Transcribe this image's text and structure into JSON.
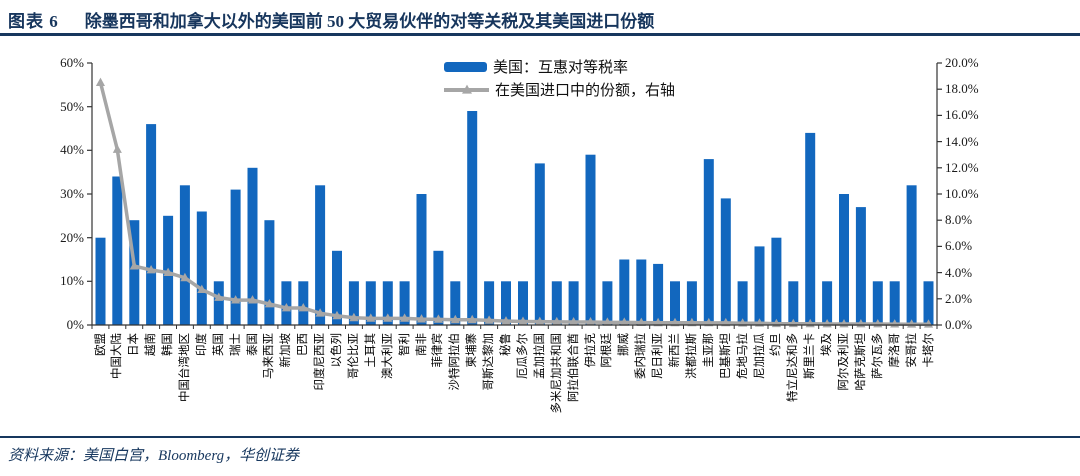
{
  "header": {
    "tag": "图表 6",
    "title": "除墨西哥和加拿大以外的美国前 50 大贸易伙伴的对等关税及其美国进口份额"
  },
  "legend": {
    "bar_label": "美国：互惠对等税率",
    "line_label": "在美国进口中的份额，右轴"
  },
  "footer": {
    "source": "资料来源：美国白宫，Bloomberg，华创证券"
  },
  "colors": {
    "bar": "#1267BE",
    "line": "#A6A6A6",
    "axis": "#333333",
    "navy": "#17365D"
  },
  "chart_data": {
    "type": "bar",
    "subtype": "combo-bar-line-dual-axis",
    "title": "除墨西哥和加拿大以外的美国前50大贸易伙伴的对等关税及其美国进口份额",
    "grid": false,
    "legend_position": "top-center",
    "categories": [
      "欧盟",
      "中国大陆",
      "日本",
      "越南",
      "韩国",
      "中国台湾地区",
      "印度",
      "英国",
      "瑞士",
      "泰国",
      "马来西亚",
      "新加坡",
      "巴西",
      "印度尼西亚",
      "以色列",
      "哥伦比亚",
      "土耳其",
      "澳大利亚",
      "智利",
      "南非",
      "菲律宾",
      "沙特阿拉伯",
      "柬埔寨",
      "哥斯达黎加",
      "秘鲁",
      "厄瓜多尔",
      "孟加拉国",
      "多米尼加共和国",
      "阿拉伯联合酋",
      "伊拉克",
      "阿根廷",
      "挪威",
      "委内瑞拉",
      "尼日利亚",
      "新西兰",
      "洪都拉斯",
      "圭亚那",
      "巴基斯坦",
      "危地马拉",
      "尼加拉瓜",
      "约旦",
      "特立尼达和多",
      "斯里兰卡",
      "埃及",
      "阿尔及利亚",
      "哈萨克斯坦",
      "萨尔瓦多",
      "摩洛哥",
      "安哥拉",
      "卡塔尔"
    ],
    "series": [
      {
        "name": "美国：互惠对等税率",
        "type": "bar",
        "axis": "left",
        "unit": "%",
        "values": [
          20,
          34,
          24,
          46,
          25,
          32,
          26,
          10,
          31,
          36,
          24,
          10,
          10,
          32,
          17,
          10,
          10,
          10,
          10,
          30,
          17,
          10,
          49,
          10,
          10,
          10,
          37,
          10,
          10,
          39,
          10,
          15,
          15,
          14,
          10,
          10,
          38,
          29,
          10,
          18,
          20,
          10,
          44,
          10,
          30,
          27,
          10,
          10,
          32,
          10
        ]
      },
      {
        "name": "在美国进口中的份额，右轴",
        "type": "line",
        "axis": "right",
        "unit": "%",
        "values": [
          18.5,
          13.4,
          4.5,
          4.2,
          4.0,
          3.6,
          2.7,
          2.1,
          1.9,
          1.9,
          1.6,
          1.3,
          1.3,
          0.9,
          0.7,
          0.55,
          0.5,
          0.5,
          0.5,
          0.45,
          0.43,
          0.4,
          0.4,
          0.35,
          0.3,
          0.27,
          0.26,
          0.24,
          0.23,
          0.23,
          0.2,
          0.2,
          0.18,
          0.17,
          0.17,
          0.17,
          0.16,
          0.16,
          0.14,
          0.14,
          0.1,
          0.1,
          0.09,
          0.08,
          0.08,
          0.08,
          0.08,
          0.07,
          0.06,
          0.06
        ]
      }
    ],
    "left_axis": {
      "min": 0,
      "max": 60,
      "step": 10
    },
    "right_axis": {
      "min": 0,
      "max": 20,
      "step": 2
    },
    "left_ticks": [
      "0%",
      "10%",
      "20%",
      "30%",
      "40%",
      "50%",
      "60%"
    ],
    "right_ticks": [
      "0.0%",
      "2.0%",
      "4.0%",
      "6.0%",
      "8.0%",
      "10.0%",
      "12.0%",
      "14.0%",
      "16.0%",
      "18.0%",
      "20.0%"
    ]
  }
}
